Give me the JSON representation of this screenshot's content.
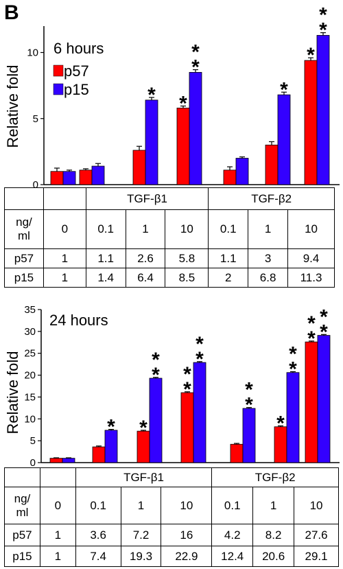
{
  "panel_label": "B",
  "colors": {
    "p57": "#ff0000",
    "p15": "#3300ff"
  },
  "chart_data": [
    {
      "type": "bar",
      "title": "6 hours",
      "ylabel": "Relative fold",
      "ylim": [
        0,
        12
      ],
      "yticks": [
        0,
        5,
        10
      ],
      "categories": [
        "0",
        "TGF-β1 0.1",
        "TGF-β1 1",
        "TGF-β1 10",
        "TGF-β2 0.1",
        "TGF-β2 1",
        "TGF-β2 10"
      ],
      "series": [
        {
          "name": "p57",
          "values": [
            1,
            1.1,
            2.6,
            5.8,
            1.1,
            3,
            9.4
          ],
          "errors": [
            0.25,
            0.1,
            0.3,
            0.15,
            0.25,
            0.25,
            0.2
          ],
          "stars": [
            "",
            "",
            "",
            "*",
            "",
            "",
            "*"
          ]
        },
        {
          "name": "p15",
          "values": [
            1,
            1.4,
            6.4,
            8.5,
            2,
            6.8,
            11.3
          ],
          "errors": [
            0.1,
            0.2,
            0.2,
            0.2,
            0.1,
            0.2,
            0.2
          ],
          "stars": [
            "",
            "",
            "*",
            "**",
            "",
            "*",
            "**"
          ]
        }
      ],
      "table": {
        "group_headers": [
          "TGF-β1",
          "TGF-β2"
        ],
        "row_header": [
          "ng/",
          "ml"
        ],
        "concentrations": [
          "0",
          "0.1",
          "1",
          "10",
          "0.1",
          "1",
          "10"
        ],
        "rows": [
          {
            "label": "p57",
            "values": [
              "1",
              "1.1",
              "2.6",
              "5.8",
              "1.1",
              "3",
              "9.4"
            ]
          },
          {
            "label": "p15",
            "values": [
              "1",
              "1.4",
              "6.4",
              "8.5",
              "2",
              "6.8",
              "11.3"
            ]
          }
        ]
      }
    },
    {
      "type": "bar",
      "title": "24 hours",
      "ylabel": "Relative fold",
      "ylim": [
        0,
        35
      ],
      "yticks": [
        0,
        5,
        10,
        15,
        20,
        25,
        30,
        35
      ],
      "categories": [
        "0",
        "TGF-β1 0.1",
        "TGF-β1 1",
        "TGF-β1 10",
        "TGF-β2 0.1",
        "TGF-β2 1",
        "TGF-β2 10"
      ],
      "series": [
        {
          "name": "p57",
          "values": [
            1,
            3.6,
            7.2,
            16,
            4.2,
            8.2,
            27.6
          ],
          "errors": [
            0.1,
            0.2,
            0.2,
            0.2,
            0.2,
            0.2,
            0.2
          ],
          "stars": [
            "",
            "",
            "*",
            "**",
            "",
            "*",
            "**"
          ]
        },
        {
          "name": "p15",
          "values": [
            1,
            7.4,
            19.3,
            22.9,
            12.4,
            20.6,
            29.1
          ],
          "errors": [
            0.1,
            0.2,
            0.2,
            0.2,
            0.2,
            0.2,
            0.2
          ],
          "stars": [
            "",
            "*",
            "**",
            "**",
            "**",
            "**",
            "**"
          ]
        }
      ],
      "table": {
        "group_headers": [
          "TGF-β1",
          "TGF-β2"
        ],
        "row_header": [
          "ng/",
          "ml"
        ],
        "concentrations": [
          "0",
          "0.1",
          "1",
          "10",
          "0.1",
          "1",
          "10"
        ],
        "rows": [
          {
            "label": "p57",
            "values": [
              "1",
              "3.6",
              "7.2",
              "16",
              "4.2",
              "8.2",
              "27.6"
            ]
          },
          {
            "label": "p15",
            "values": [
              "1",
              "7.4",
              "19.3",
              "22.9",
              "12.4",
              "20.6",
              "29.1"
            ]
          }
        ]
      }
    }
  ]
}
